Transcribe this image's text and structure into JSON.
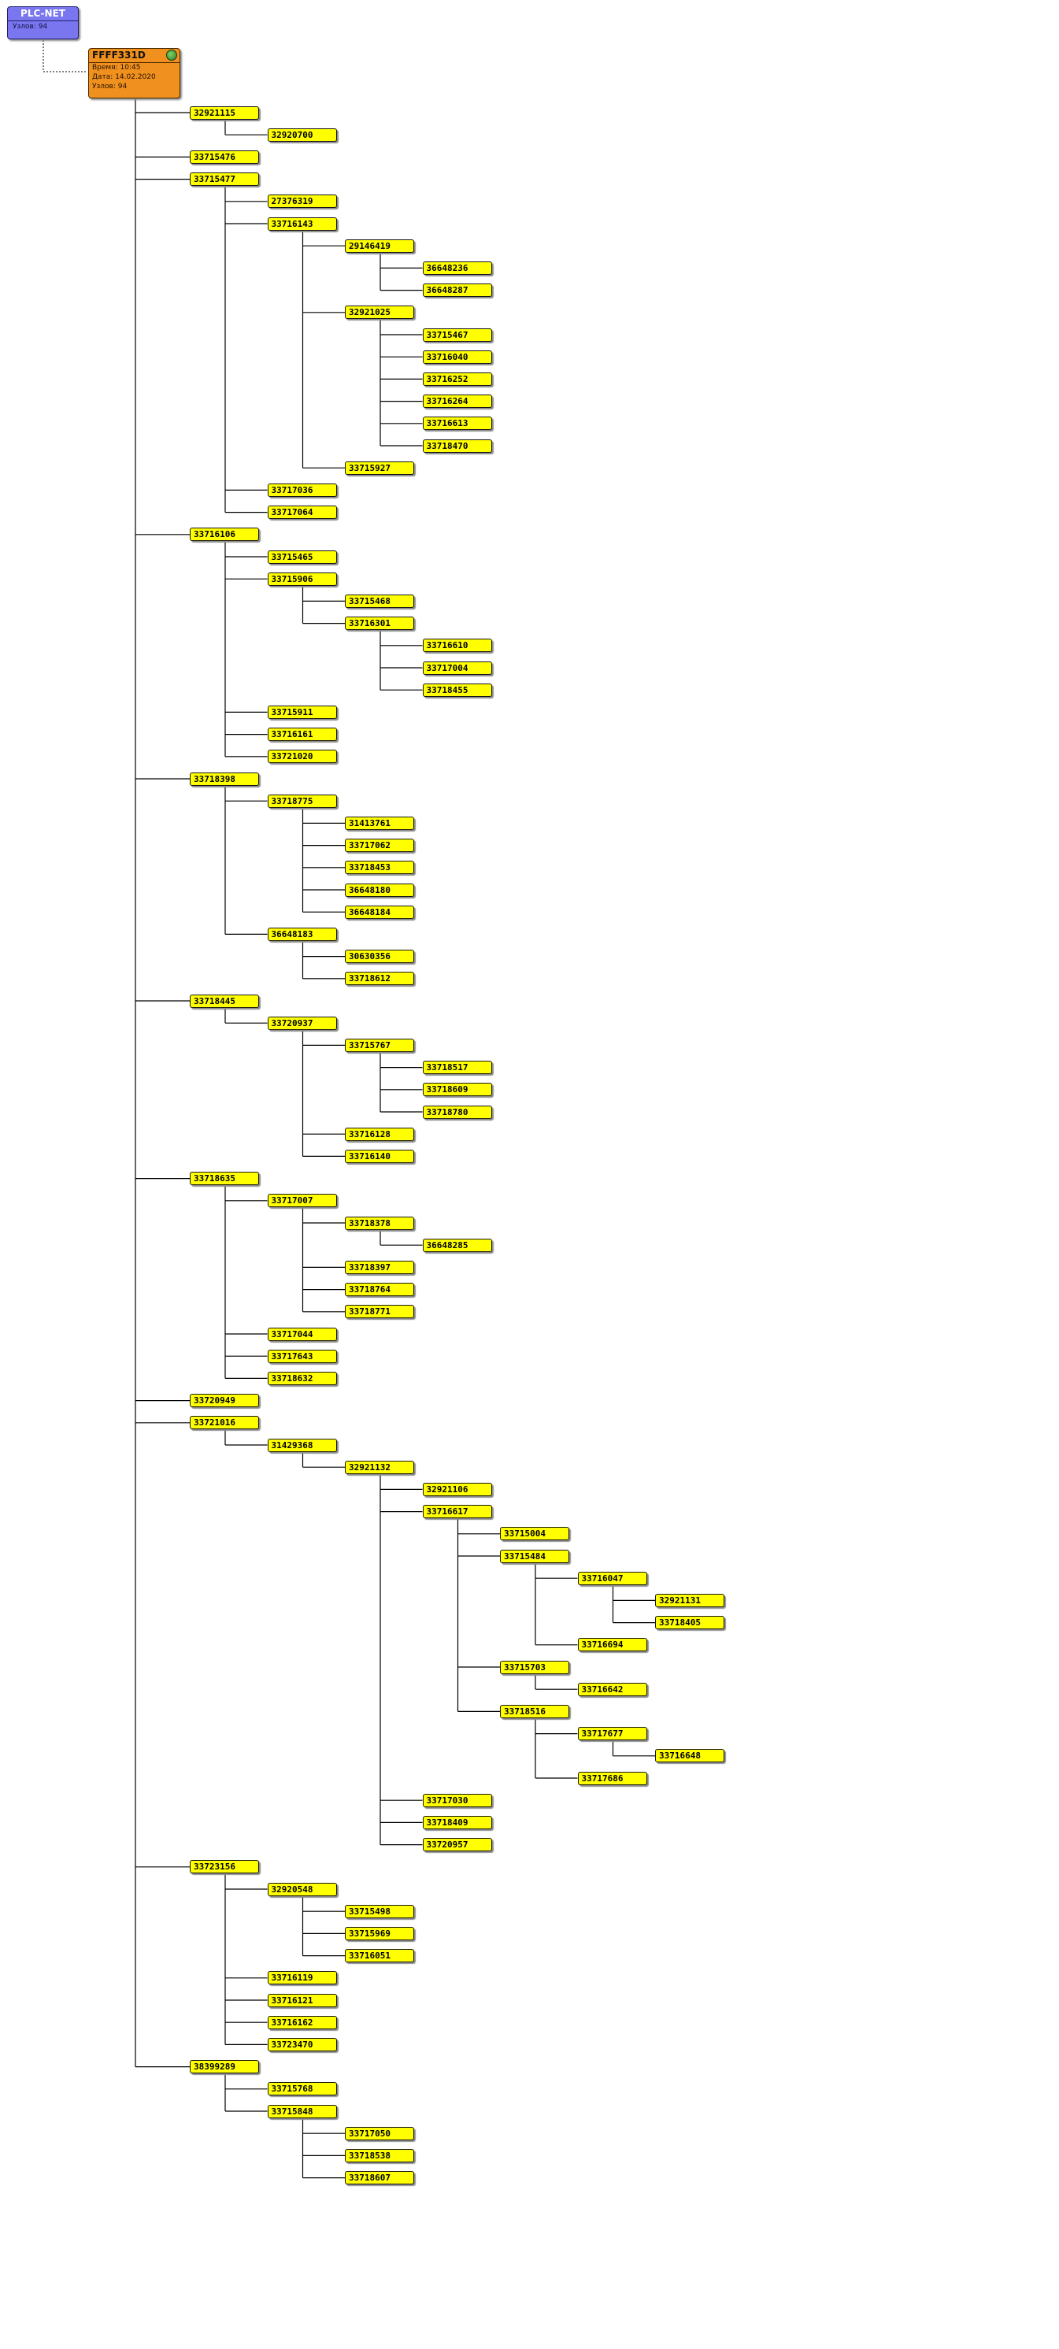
{
  "root": {
    "title": "PLC-NET",
    "subtitle": "Узлов: 94"
  },
  "concentrator": {
    "id": "FFFF331D",
    "icon": "network-globe-icon",
    "lines": [
      "Время: 10:45",
      "Дата: 14.02.2020",
      "Узлов: 94"
    ]
  },
  "colors": {
    "root": "#7a76f0",
    "concentrator": "#f0901e",
    "node": "#ffff00",
    "line": "#000000"
  },
  "tree": [
    {
      "id": "32921115",
      "children": [
        {
          "id": "32920700"
        }
      ]
    },
    {
      "id": "33715476"
    },
    {
      "id": "33715477",
      "children": [
        {
          "id": "27376319"
        },
        {
          "id": "33716143",
          "children": [
            {
              "id": "29146419",
              "children": [
                {
                  "id": "36648236"
                },
                {
                  "id": "36648287"
                }
              ]
            },
            {
              "id": "32921025",
              "children": [
                {
                  "id": "33715467"
                },
                {
                  "id": "33716040"
                },
                {
                  "id": "33716252"
                },
                {
                  "id": "33716264"
                },
                {
                  "id": "33716613"
                },
                {
                  "id": "33718470"
                }
              ]
            },
            {
              "id": "33715927"
            }
          ]
        },
        {
          "id": "33717036"
        },
        {
          "id": "33717064"
        }
      ]
    },
    {
      "id": "33716106",
      "children": [
        {
          "id": "33715465"
        },
        {
          "id": "33715906",
          "children": [
            {
              "id": "33715468"
            },
            {
              "id": "33716301",
              "children": [
                {
                  "id": "33716610"
                },
                {
                  "id": "33717004"
                },
                {
                  "id": "33718455"
                }
              ]
            }
          ]
        },
        {
          "id": "33715911"
        },
        {
          "id": "33716161"
        },
        {
          "id": "33721020"
        }
      ]
    },
    {
      "id": "33718398",
      "children": [
        {
          "id": "33718775",
          "children": [
            {
              "id": "31413761"
            },
            {
              "id": "33717062"
            },
            {
              "id": "33718453"
            },
            {
              "id": "36648180"
            },
            {
              "id": "36648184"
            }
          ]
        },
        {
          "id": "36648183",
          "children": [
            {
              "id": "30630356"
            },
            {
              "id": "33718612"
            }
          ]
        }
      ]
    },
    {
      "id": "33718445",
      "children": [
        {
          "id": "33720937",
          "children": [
            {
              "id": "33715767",
              "children": [
                {
                  "id": "33718517"
                },
                {
                  "id": "33718609"
                },
                {
                  "id": "33718780"
                }
              ]
            },
            {
              "id": "33716128"
            },
            {
              "id": "33716140"
            }
          ]
        }
      ]
    },
    {
      "id": "33718635",
      "children": [
        {
          "id": "33717007",
          "children": [
            {
              "id": "33718378",
              "children": [
                {
                  "id": "36648285"
                }
              ]
            },
            {
              "id": "33718397"
            },
            {
              "id": "33718764"
            },
            {
              "id": "33718771"
            }
          ]
        },
        {
          "id": "33717044"
        },
        {
          "id": "33717643"
        },
        {
          "id": "33718632"
        }
      ]
    },
    {
      "id": "33720949"
    },
    {
      "id": "33721016",
      "children": [
        {
          "id": "31429368",
          "children": [
            {
              "id": "32921132",
              "children": [
                {
                  "id": "32921106"
                },
                {
                  "id": "33716617",
                  "children": [
                    {
                      "id": "33715004"
                    },
                    {
                      "id": "33715484",
                      "children": [
                        {
                          "id": "33716047",
                          "children": [
                            {
                              "id": "32921131"
                            },
                            {
                              "id": "33718405"
                            }
                          ]
                        },
                        {
                          "id": "33716694"
                        }
                      ]
                    },
                    {
                      "id": "33715703",
                      "children": [
                        {
                          "id": "33716642"
                        }
                      ]
                    },
                    {
                      "id": "33718516",
                      "children": [
                        {
                          "id": "33717677",
                          "children": [
                            {
                              "id": "33716648"
                            }
                          ]
                        },
                        {
                          "id": "33717686"
                        }
                      ]
                    }
                  ]
                },
                {
                  "id": "33717030"
                },
                {
                  "id": "33718409"
                },
                {
                  "id": "33720957"
                }
              ]
            }
          ]
        }
      ]
    },
    {
      "id": "33723156",
      "children": [
        {
          "id": "32920548",
          "children": [
            {
              "id": "33715498"
            },
            {
              "id": "33715969"
            },
            {
              "id": "33716051"
            }
          ]
        },
        {
          "id": "33716119"
        },
        {
          "id": "33716121"
        },
        {
          "id": "33716162"
        },
        {
          "id": "33723470"
        }
      ]
    },
    {
      "id": "38399289",
      "children": [
        {
          "id": "33715768"
        },
        {
          "id": "33715848",
          "children": [
            {
              "id": "33717050"
            },
            {
              "id": "33718538"
            },
            {
              "id": "33718607"
            }
          ]
        }
      ]
    }
  ]
}
